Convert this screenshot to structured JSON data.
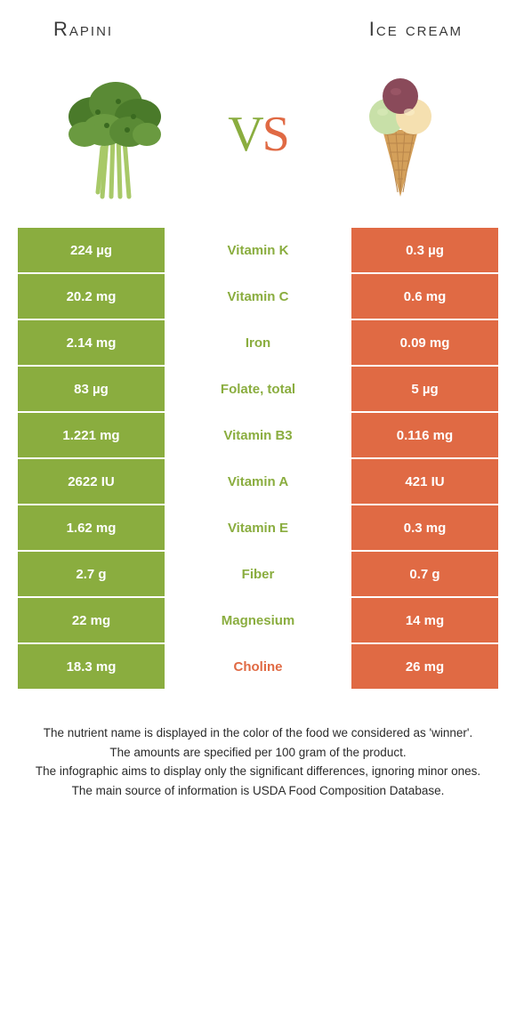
{
  "colors": {
    "green": "#8aad3f",
    "orange": "#e06a44",
    "text_dark": "#3a3a3a",
    "white": "#ffffff"
  },
  "header": {
    "left": "Rapini",
    "right": "Ice cream"
  },
  "vs": {
    "v": "V",
    "s": "S"
  },
  "rows": [
    {
      "left": "224 µg",
      "mid": "Vitamin K",
      "right": "0.3 µg",
      "winner": "left"
    },
    {
      "left": "20.2 mg",
      "mid": "Vitamin C",
      "right": "0.6 mg",
      "winner": "left"
    },
    {
      "left": "2.14 mg",
      "mid": "Iron",
      "right": "0.09 mg",
      "winner": "left"
    },
    {
      "left": "83 µg",
      "mid": "Folate, total",
      "right": "5 µg",
      "winner": "left"
    },
    {
      "left": "1.221 mg",
      "mid": "Vitamin B3",
      "right": "0.116 mg",
      "winner": "left"
    },
    {
      "left": "2622 IU",
      "mid": "Vitamin A",
      "right": "421 IU",
      "winner": "left"
    },
    {
      "left": "1.62 mg",
      "mid": "Vitamin E",
      "right": "0.3 mg",
      "winner": "left"
    },
    {
      "left": "2.7 g",
      "mid": "Fiber",
      "right": "0.7 g",
      "winner": "left"
    },
    {
      "left": "22 mg",
      "mid": "Magnesium",
      "right": "14 mg",
      "winner": "left"
    },
    {
      "left": "18.3 mg",
      "mid": "Choline",
      "right": "26 mg",
      "winner": "right"
    }
  ],
  "footnotes": [
    "The nutrient name is displayed in the color of the food we considered as 'winner'.",
    "The amounts are specified per 100 gram of the product.",
    "The infographic aims to display only the significant differences, ignoring minor ones.",
    "The main source of information is USDA Food Composition Database."
  ]
}
